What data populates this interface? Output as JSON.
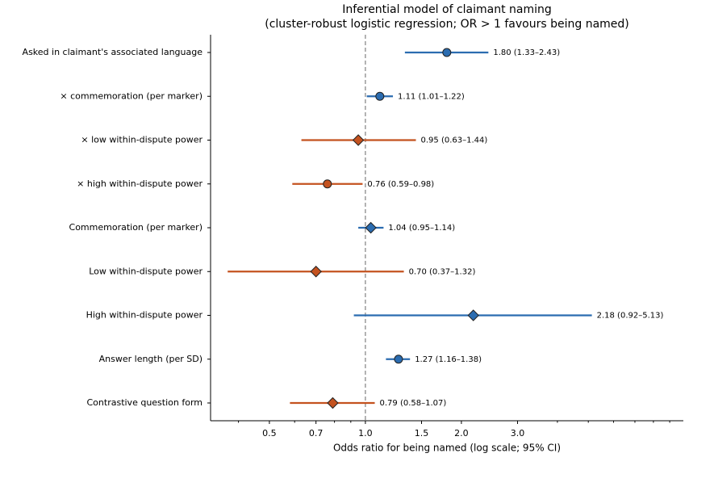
{
  "chart_data": {
    "type": "forest",
    "title": "Inferential model of claimant naming",
    "subtitle": "(cluster-robust logistic regression; OR > 1 favours being named)",
    "x_label": "Odds ratio for being named (log scale; 95% CI)",
    "categories": [
      "Asked in claimant's associated language",
      "× commemoration (per marker)",
      "× low within-dispute power",
      "× high within-dispute power",
      "Commemoration (per marker)",
      "Low within-dispute power",
      "High within-dispute power",
      "Answer length (per SD)",
      "Contrastive question form"
    ],
    "values": [
      1.8,
      1.11,
      0.95,
      0.76,
      1.04,
      0.7,
      2.18,
      1.27,
      0.79
    ],
    "lower": [
      1.33,
      1.01,
      0.63,
      0.59,
      0.95,
      0.37,
      0.92,
      1.16,
      0.58
    ],
    "upper": [
      2.43,
      1.22,
      1.44,
      0.98,
      1.14,
      1.32,
      5.13,
      1.38,
      1.07
    ],
    "value_labels": [
      "1.80 (1.33–2.43)",
      "1.11 (1.01–1.22)",
      "0.95 (0.63–1.44)",
      "0.76 (0.59–0.98)",
      "1.04 (0.95–1.14)",
      "0.70 (0.37–1.32)",
      "2.18 (0.92–5.13)",
      "1.27 (1.16–1.38)",
      "0.79 (0.58–1.07)"
    ],
    "colors": [
      "#2b6cb0",
      "#2b6cb0",
      "#c4521f",
      "#c4521f",
      "#2b6cb0",
      "#c4521f",
      "#2b6cb0",
      "#2b6cb0",
      "#c4521f"
    ],
    "markers": [
      "circle",
      "circle",
      "diamond",
      "circle",
      "diamond",
      "diamond",
      "diamond",
      "circle",
      "diamond"
    ],
    "log_x": true,
    "xlim": [
      0.327,
      9.93
    ],
    "xticks": [
      0.5,
      0.7,
      {
        "value": 1,
        "label": "1.0"
      },
      1.5,
      {
        "value": 2,
        "label": "2.0"
      },
      {
        "value": 3,
        "label": "3.0"
      }
    ],
    "xminorticks": [
      0.4,
      0.6,
      0.8,
      0.9,
      4,
      5,
      6,
      7,
      8,
      9
    ],
    "reference_line": 1
  }
}
